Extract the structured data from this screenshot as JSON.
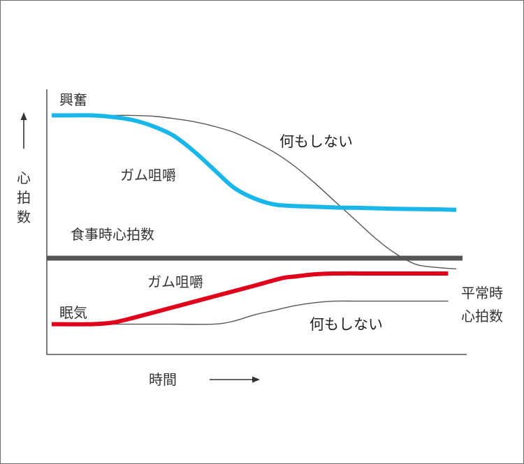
{
  "chart_data": {
    "type": "line",
    "ylabel": "心拍数",
    "xlabel": "時間",
    "reference_line": {
      "label": "食事時心拍数"
    },
    "end_label": [
      "平常時",
      "心拍数"
    ],
    "state_labels": {
      "high": "興奮",
      "low": "眠気"
    },
    "series": [
      {
        "name": "ガム咀嚼",
        "group": "興奮",
        "color": "#19b6e9",
        "x": [
          0,
          5,
          10,
          15,
          20,
          25,
          30,
          35,
          40,
          45,
          50,
          55,
          60,
          65,
          70,
          75,
          80,
          85,
          90,
          95,
          100
        ],
        "y": [
          9.3,
          9.3,
          9.3,
          9.2,
          9.0,
          8.6,
          8.0,
          7.0,
          5.8,
          4.6,
          3.9,
          3.5,
          3.4,
          3.35,
          3.3,
          3.28,
          3.25,
          3.22,
          3.2,
          3.18,
          3.15
        ]
      },
      {
        "name": "何もしない",
        "group": "興奮",
        "color": "#555555",
        "x": [
          0,
          5,
          10,
          15,
          20,
          25,
          30,
          35,
          40,
          45,
          50,
          55,
          60,
          65,
          70,
          75,
          80,
          85,
          90,
          95,
          100
        ],
        "y": [
          9.3,
          9.3,
          9.3,
          9.3,
          9.3,
          9.25,
          9.1,
          8.9,
          8.6,
          8.2,
          7.6,
          6.9,
          6.0,
          4.9,
          3.7,
          2.5,
          1.3,
          0.3,
          -0.4,
          -0.6,
          -0.7
        ]
      },
      {
        "name": "ガム咀嚼",
        "group": "眠気",
        "color": "#e0001b",
        "x": [
          0,
          10,
          15,
          20,
          30,
          40,
          50,
          57,
          60,
          65,
          70,
          80,
          90,
          98
        ],
        "y": [
          -4.3,
          -4.3,
          -4.2,
          -3.9,
          -3.2,
          -2.5,
          -1.8,
          -1.3,
          -1.2,
          -1.05,
          -1.0,
          -1.0,
          -1.0,
          -1.0
        ]
      },
      {
        "name": "何もしない",
        "group": "眠気",
        "color": "#555555",
        "x": [
          0,
          10,
          20,
          30,
          40,
          45,
          50,
          55,
          60,
          65,
          70,
          75,
          80,
          90,
          98
        ],
        "y": [
          -4.3,
          -4.3,
          -4.3,
          -4.3,
          -4.3,
          -4.1,
          -3.7,
          -3.4,
          -3.1,
          -2.9,
          -2.8,
          -2.8,
          -2.8,
          -2.8,
          -2.8
        ]
      }
    ]
  }
}
